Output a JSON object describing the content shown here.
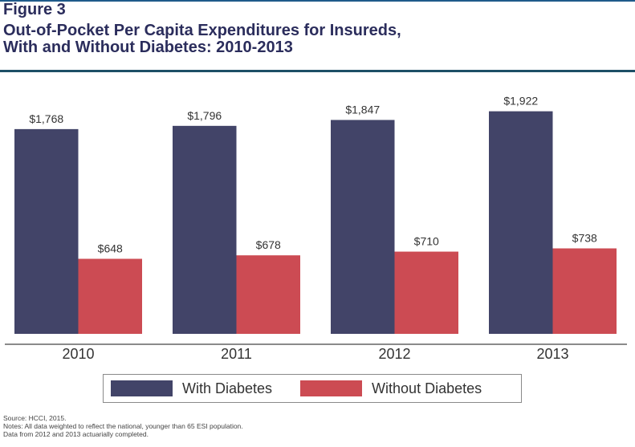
{
  "figure": {
    "label": "Figure 3",
    "title_line1": "Out-of-Pocket Per Capita Expenditures for Insureds,",
    "title_line2": "With and Without Diabetes: 2010-2013"
  },
  "chart_data": {
    "type": "bar",
    "title": "Out-of-Pocket Per Capita Expenditures for Insureds, With and Without Diabetes: 2010-2013",
    "xlabel": "",
    "ylabel": "",
    "categories": [
      "2010",
      "2011",
      "2012",
      "2013"
    ],
    "series": [
      {
        "name": "With Diabetes",
        "color": "#424468",
        "values": [
          1768,
          1796,
          1847,
          1922
        ],
        "labels": [
          "$1,768",
          "$1,796",
          "$1,847",
          "$1,922"
        ]
      },
      {
        "name": "Without Diabetes",
        "color": "#cc4b53",
        "values": [
          648,
          678,
          710,
          738
        ],
        "labels": [
          "$648",
          "$678",
          "$710",
          "$738"
        ]
      }
    ],
    "ylim": [
      0,
      2000
    ],
    "grid": false,
    "legend_position": "bottom"
  },
  "legend": {
    "items": [
      {
        "label": "With Diabetes"
      },
      {
        "label": "Without Diabetes"
      }
    ]
  },
  "notes": {
    "source": "Source: HCCI, 2015.",
    "line1": "Notes: All data weighted to reflect the national, younger than 65 ESI population.",
    "line2": "Data from 2012 and 2013 actuarially completed."
  }
}
